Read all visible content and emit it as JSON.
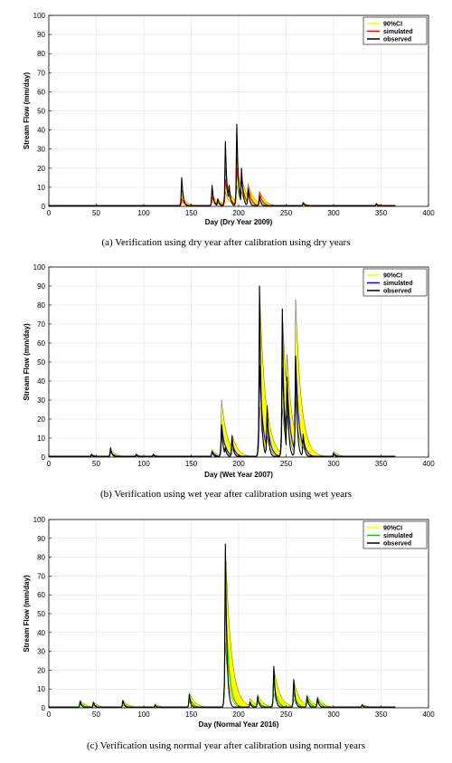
{
  "chart_data": [
    {
      "type": "area",
      "xlabel": "Day (Dry Year 2009)",
      "ylabel": "Stream Flow (mm/day)",
      "xlim": [
        0,
        400
      ],
      "ylim": [
        0,
        100
      ],
      "xticks": [
        "0",
        "50",
        "100",
        "150",
        "200",
        "250",
        "300",
        "350",
        "400"
      ],
      "yticks": [
        "0",
        "10",
        "20",
        "30",
        "40",
        "50",
        "60",
        "70",
        "80",
        "90",
        "100"
      ],
      "grid": true,
      "legend_position": "top-right",
      "caption": "(a)  Verification using dry year after calibration using dry years",
      "series": [
        {
          "name": "90%CI",
          "color": "#ffff00"
        },
        {
          "name": "simulated",
          "color": "#ff0000"
        },
        {
          "name": "observed",
          "color": "#000000"
        }
      ],
      "peaks": [
        {
          "x": 140,
          "observed": 15,
          "simulated": 4,
          "upper": 5
        },
        {
          "x": 172,
          "observed": 11,
          "simulated": 5,
          "upper": 6
        },
        {
          "x": 178,
          "observed": 4,
          "simulated": 3,
          "upper": 4
        },
        {
          "x": 186,
          "observed": 34,
          "simulated": 14,
          "upper": 16
        },
        {
          "x": 190,
          "observed": 11,
          "simulated": 6,
          "upper": 8
        },
        {
          "x": 198,
          "observed": 43,
          "simulated": 20,
          "upper": 22
        },
        {
          "x": 203,
          "observed": 20,
          "simulated": 14,
          "upper": 16
        },
        {
          "x": 210,
          "observed": 9,
          "simulated": 10,
          "upper": 12
        },
        {
          "x": 222,
          "observed": 5,
          "simulated": 7,
          "upper": 8
        },
        {
          "x": 268,
          "observed": 2,
          "simulated": 1.5,
          "upper": 2
        },
        {
          "x": 345,
          "observed": 1.5,
          "simulated": 1,
          "upper": 1.5
        }
      ]
    },
    {
      "type": "area",
      "xlabel": "Day (Wet Year 2007)",
      "ylabel": "Stream Flow (mm/day)",
      "xlim": [
        0,
        400
      ],
      "ylim": [
        0,
        100
      ],
      "xticks": [
        "0",
        "50",
        "100",
        "150",
        "200",
        "250",
        "300",
        "350",
        "400"
      ],
      "yticks": [
        "0",
        "10",
        "20",
        "30",
        "40",
        "50",
        "60",
        "70",
        "80",
        "90",
        "100"
      ],
      "grid": true,
      "legend_position": "top-right",
      "caption": "(b)  Verification using wet year after calibration using wet years",
      "series": [
        {
          "name": "90%CI",
          "color": "#ffff00"
        },
        {
          "name": "simulated",
          "color": "#0000ff"
        },
        {
          "name": "observed",
          "color": "#000000"
        }
      ],
      "peaks": [
        {
          "x": 45,
          "observed": 1.5,
          "simulated": 1,
          "upper": 1.5
        },
        {
          "x": 65,
          "observed": 5,
          "simulated": 3,
          "upper": 4
        },
        {
          "x": 92,
          "observed": 1.5,
          "simulated": 1,
          "upper": 1.5
        },
        {
          "x": 110,
          "observed": 1.5,
          "simulated": 1,
          "upper": 1.5
        },
        {
          "x": 172,
          "observed": 3,
          "simulated": 3,
          "upper": 4
        },
        {
          "x": 182,
          "observed": 17,
          "simulated": 17,
          "upper": 30
        },
        {
          "x": 186,
          "observed": 5,
          "simulated": 6,
          "upper": 10
        },
        {
          "x": 193,
          "observed": 11,
          "simulated": 8,
          "upper": 12
        },
        {
          "x": 222,
          "observed": 90,
          "simulated": 48,
          "upper": 90
        },
        {
          "x": 230,
          "observed": 27,
          "simulated": 20,
          "upper": 27
        },
        {
          "x": 246,
          "observed": 78,
          "simulated": 47,
          "upper": 78
        },
        {
          "x": 251,
          "observed": 42,
          "simulated": 40,
          "upper": 54
        },
        {
          "x": 260,
          "observed": 53,
          "simulated": 53,
          "upper": 83
        },
        {
          "x": 268,
          "observed": 12,
          "simulated": 10,
          "upper": 18
        },
        {
          "x": 300,
          "observed": 2,
          "simulated": 2,
          "upper": 3
        }
      ]
    },
    {
      "type": "area",
      "xlabel": "Day (Normal Year 2016)",
      "ylabel": "Stream Flow (mm/day)",
      "xlim": [
        0,
        400
      ],
      "ylim": [
        0,
        100
      ],
      "xticks": [
        "0",
        "50",
        "100",
        "150",
        "200",
        "250",
        "300",
        "350",
        "400"
      ],
      "yticks": [
        "0",
        "10",
        "20",
        "30",
        "40",
        "50",
        "60",
        "70",
        "80",
        "90",
        "100"
      ],
      "grid": true,
      "legend_position": "top-right",
      "caption": "(c)  Verification using normal year after calibration using normal years",
      "series": [
        {
          "name": "90%CI",
          "color": "#ffff00"
        },
        {
          "name": "simulated",
          "color": "#00cc00"
        },
        {
          "name": "observed",
          "color": "#000000"
        }
      ],
      "peaks": [
        {
          "x": 33,
          "observed": 3.5,
          "simulated": 3,
          "upper": 4
        },
        {
          "x": 47,
          "observed": 3,
          "simulated": 2,
          "upper": 3
        },
        {
          "x": 78,
          "observed": 4,
          "simulated": 3,
          "upper": 4
        },
        {
          "x": 112,
          "observed": 1.5,
          "simulated": 1,
          "upper": 2
        },
        {
          "x": 148,
          "observed": 7,
          "simulated": 6,
          "upper": 8
        },
        {
          "x": 186,
          "observed": 87,
          "simulated": 63,
          "upper": 87
        },
        {
          "x": 212,
          "observed": 3,
          "simulated": 3,
          "upper": 5
        },
        {
          "x": 220,
          "observed": 6,
          "simulated": 5,
          "upper": 7
        },
        {
          "x": 237,
          "observed": 22,
          "simulated": 14,
          "upper": 22
        },
        {
          "x": 258,
          "observed": 15,
          "simulated": 8,
          "upper": 15
        },
        {
          "x": 272,
          "observed": 6,
          "simulated": 6,
          "upper": 7
        },
        {
          "x": 283,
          "observed": 5,
          "simulated": 5,
          "upper": 6
        },
        {
          "x": 330,
          "observed": 1.5,
          "simulated": 1.5,
          "upper": 2
        }
      ]
    }
  ]
}
